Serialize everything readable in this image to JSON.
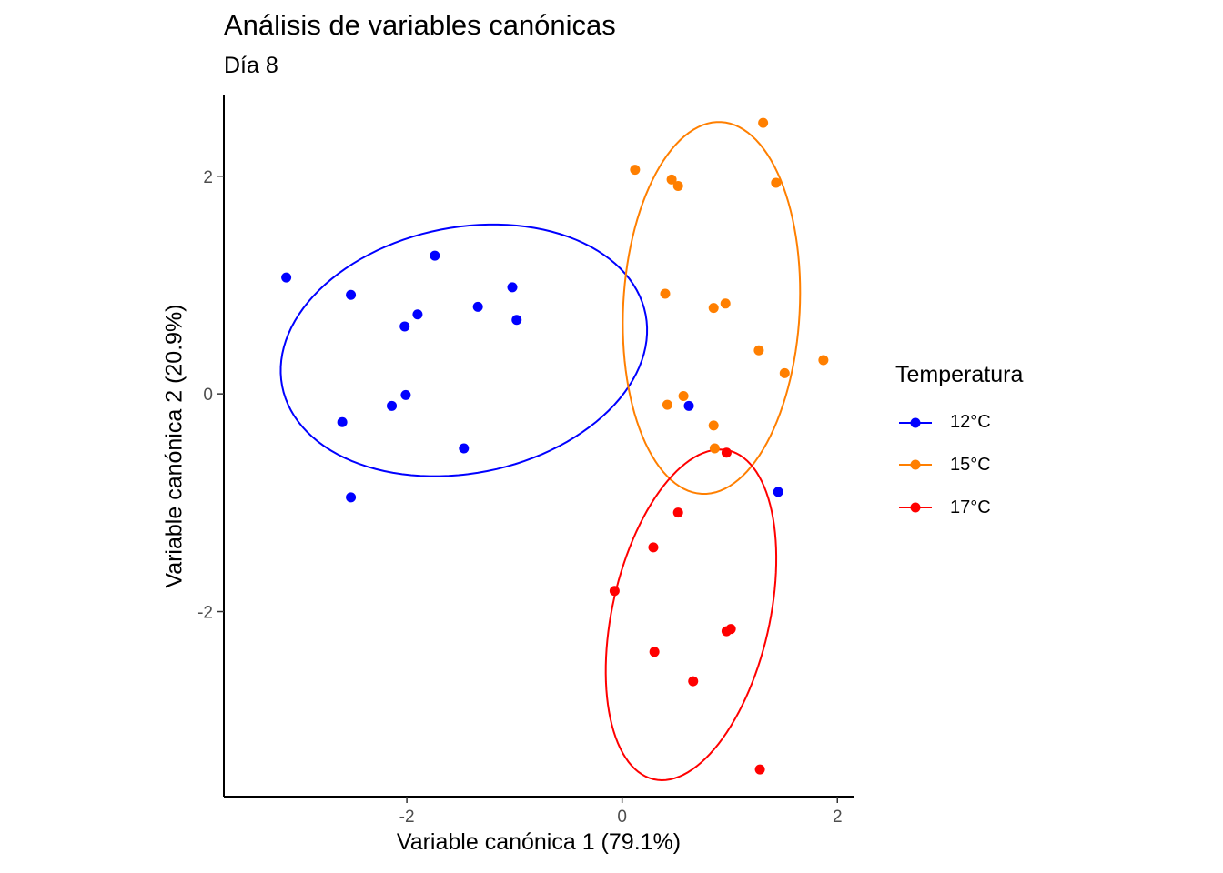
{
  "chart_data": {
    "type": "scatter",
    "title": "Análisis de variables canónicas",
    "subtitle": "Día 8",
    "xlabel": "Variable canónica 1 (79.1%)",
    "ylabel": "Variable canónica 2 (20.9%)",
    "xlim": [
      -3.7,
      2.15
    ],
    "ylim": [
      -3.7,
      2.75
    ],
    "x_ticks": [
      {
        "value": -2,
        "label": "-2"
      },
      {
        "value": 0,
        "label": "0"
      },
      {
        "value": 2,
        "label": "2"
      }
    ],
    "y_ticks": [
      {
        "value": -2,
        "label": "-2"
      },
      {
        "value": 0,
        "label": "0"
      },
      {
        "value": 2,
        "label": "2"
      }
    ],
    "grid": false,
    "legend_title": "Temperatura",
    "legend_position": "right",
    "series": [
      {
        "name": "12°C",
        "color": "#0000ff",
        "points": [
          [
            -3.12,
            1.07
          ],
          [
            -2.52,
            0.91
          ],
          [
            -1.74,
            1.27
          ],
          [
            -1.02,
            0.98
          ],
          [
            -2.02,
            0.62
          ],
          [
            -1.9,
            0.73
          ],
          [
            -1.34,
            0.8
          ],
          [
            -0.98,
            0.68
          ],
          [
            -2.01,
            -0.01
          ],
          [
            -2.14,
            -0.11
          ],
          [
            -2.6,
            -0.26
          ],
          [
            -1.47,
            -0.5
          ],
          [
            -2.52,
            -0.95
          ],
          [
            0.62,
            -0.11
          ],
          [
            1.45,
            -0.9
          ]
        ],
        "ellipse": {
          "cx": -1.47,
          "cy": 0.4,
          "rx": 1.72,
          "ry": 1.13,
          "angle_deg": 11
        }
      },
      {
        "name": "15°C",
        "color": "#ff7f00",
        "points": [
          [
            0.12,
            2.06
          ],
          [
            0.46,
            1.97
          ],
          [
            0.52,
            1.91
          ],
          [
            1.31,
            2.49
          ],
          [
            1.43,
            1.94
          ],
          [
            0.4,
            0.92
          ],
          [
            0.96,
            0.83
          ],
          [
            0.85,
            0.79
          ],
          [
            1.27,
            0.4
          ],
          [
            1.87,
            0.31
          ],
          [
            1.51,
            0.19
          ],
          [
            0.57,
            -0.02
          ],
          [
            0.42,
            -0.1
          ],
          [
            0.85,
            -0.29
          ],
          [
            0.86,
            -0.5
          ]
        ],
        "ellipse": {
          "cx": 0.83,
          "cy": 0.79,
          "rx": 0.82,
          "ry": 1.71,
          "angle_deg": -3
        }
      },
      {
        "name": "17°C",
        "color": "#ff0000",
        "points": [
          [
            0.97,
            -0.54
          ],
          [
            0.52,
            -1.09
          ],
          [
            0.29,
            -1.41
          ],
          [
            -0.07,
            -1.81
          ],
          [
            0.97,
            -2.18
          ],
          [
            1.01,
            -2.16
          ],
          [
            0.3,
            -2.37
          ],
          [
            0.66,
            -2.64
          ],
          [
            1.28,
            -3.45
          ]
        ],
        "ellipse": {
          "cx": 0.64,
          "cy": -2.03,
          "rx": 0.73,
          "ry": 1.55,
          "angle_deg": -13
        }
      }
    ]
  }
}
